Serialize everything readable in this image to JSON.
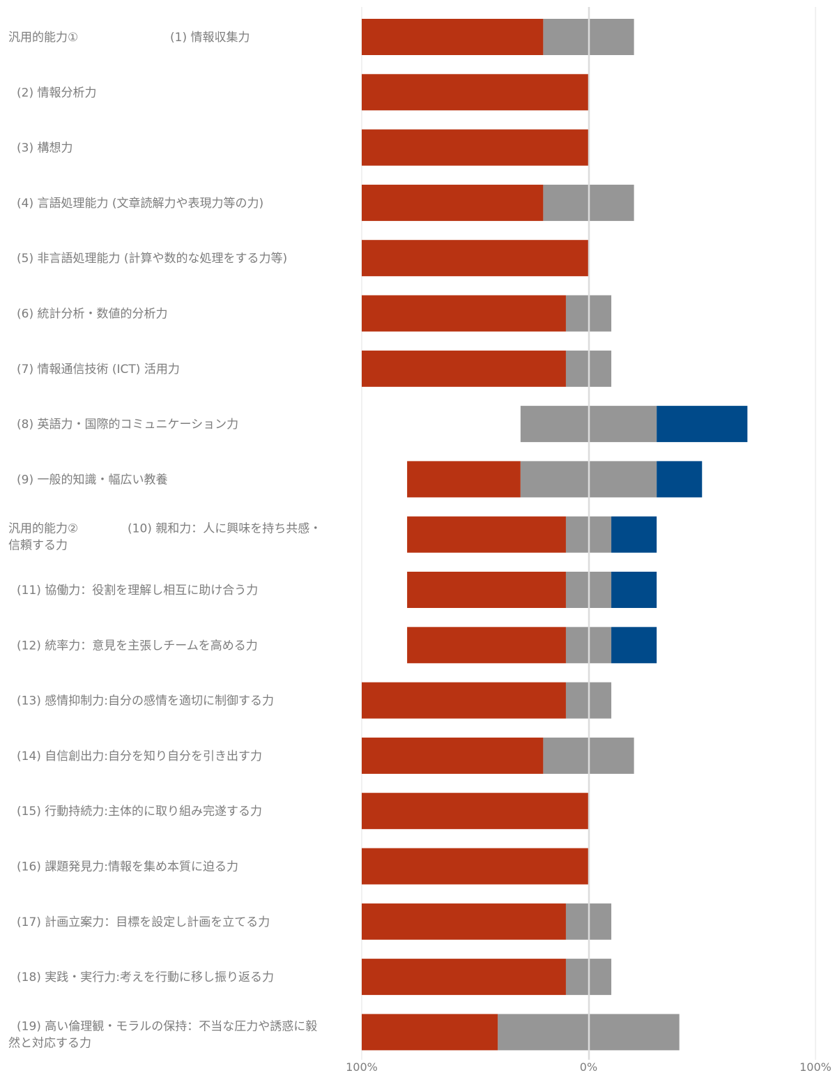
{
  "chart_data": {
    "type": "bar",
    "orientation": "horizontal",
    "stacked": true,
    "diverging": true,
    "xlim": [
      -100,
      100
    ],
    "x_ticks": [
      {
        "value": -100,
        "label": "100%"
      },
      {
        "value": 0,
        "label": "0%"
      },
      {
        "value": 100,
        "label": "100%"
      }
    ],
    "grid": true,
    "legend": "none",
    "colors": {
      "negative": "#b83312",
      "neutral": "#969696",
      "positive": "#004a8a"
    },
    "rows": [
      {
        "group": "汎用的能力①",
        "lines": [
          "(1) 情報収集力"
        ],
        "negative": 80,
        "neutral": 40,
        "positive": 0
      },
      {
        "lines": [
          "(2) 情報分析力"
        ],
        "negative": 100,
        "neutral": 0,
        "positive": 0
      },
      {
        "lines": [
          "(3) 構想力"
        ],
        "negative": 100,
        "neutral": 0,
        "positive": 0
      },
      {
        "lines": [
          "(4) 言語処理能力 (文章読解力や表現力等の力)"
        ],
        "negative": 80,
        "neutral": 40,
        "positive": 0
      },
      {
        "lines": [
          "(5) 非言語処理能力 (計算や数的な処理をする力等)"
        ],
        "negative": 100,
        "neutral": 0,
        "positive": 0
      },
      {
        "lines": [
          "(6) 統計分析・数値的分析力"
        ],
        "negative": 90,
        "neutral": 20,
        "positive": 0
      },
      {
        "lines": [
          "(7) 情報通信技術 (ICT) 活用力"
        ],
        "negative": 90,
        "neutral": 20,
        "positive": 0
      },
      {
        "lines": [
          "(8) 英語力・国際的コミュニケーション力"
        ],
        "negative": 0,
        "neutral": 60,
        "positive": 40
      },
      {
        "lines": [
          "(9) 一般的知識・幅広い教養"
        ],
        "negative": 50,
        "neutral": 60,
        "positive": 20
      },
      {
        "group": "汎用的能力②",
        "lines": [
          "(10) 親和力：人に興味を持ち共感・",
          "信頼する力"
        ],
        "negative": 70,
        "neutral": 20,
        "positive": 20
      },
      {
        "lines": [
          "(11) 協働力：役割を理解し相互に助け合う力"
        ],
        "negative": 70,
        "neutral": 20,
        "positive": 20
      },
      {
        "lines": [
          "(12) 統率力：意見を主張しチームを高める力"
        ],
        "negative": 70,
        "neutral": 20,
        "positive": 20
      },
      {
        "lines": [
          "(13) 感情抑制力:自分の感情を適切に制御する力"
        ],
        "negative": 90,
        "neutral": 20,
        "positive": 0
      },
      {
        "lines": [
          "(14) 自信創出力:自分を知り自分を引き出す力"
        ],
        "negative": 80,
        "neutral": 40,
        "positive": 0
      },
      {
        "lines": [
          "(15) 行動持続力:主体的に取り組み完遂する力"
        ],
        "negative": 100,
        "neutral": 0,
        "positive": 0
      },
      {
        "lines": [
          "(16) 課題発見力:情報を集め本質に迫る力"
        ],
        "negative": 100,
        "neutral": 0,
        "positive": 0
      },
      {
        "lines": [
          "(17) 計画立案力：目標を設定し計画を立てる力"
        ],
        "negative": 90,
        "neutral": 20,
        "positive": 0
      },
      {
        "lines": [
          "(18) 実践・実行力:考えを行動に移し振り返る力"
        ],
        "negative": 90,
        "neutral": 20,
        "positive": 0
      },
      {
        "lines": [
          "(19) 高い倫理観・モラルの保持：不当な圧力や誘惑に毅",
          "然と対応する力"
        ],
        "negative": 60,
        "neutral": 80,
        "positive": 0
      }
    ]
  }
}
